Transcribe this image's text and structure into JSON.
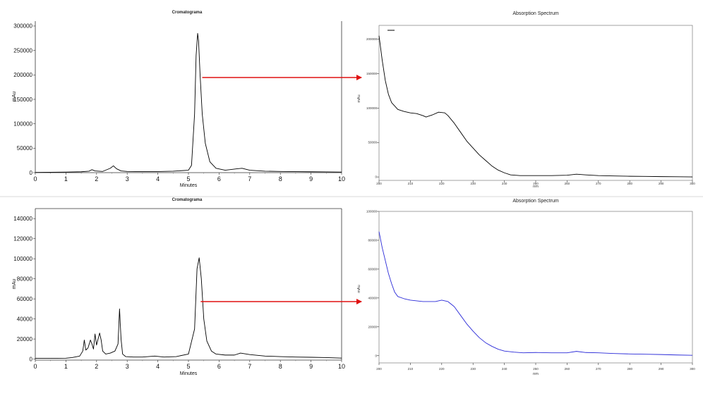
{
  "chart_data": [
    {
      "type": "line",
      "title": "Cromatograma",
      "xlabel": "Minutes",
      "ylabel": "mAu",
      "xlim": [
        0,
        10
      ],
      "ylim": [
        0,
        310000
      ],
      "x_ticks": [
        0,
        1,
        2,
        3,
        4,
        5,
        6,
        7,
        8,
        9,
        10
      ],
      "y_ticks": [
        0,
        50000,
        100000,
        150000,
        200000,
        250000,
        300000
      ],
      "y_tick_labels": [
        "0",
        "50000",
        "100000",
        "150000",
        "200000",
        "250000",
        "300000"
      ],
      "series": [
        {
          "color": "#000000",
          "x": [
            0,
            0.5,
            1,
            1.5,
            1.75,
            1.85,
            1.95,
            2.2,
            2.45,
            2.55,
            2.65,
            2.8,
            3,
            3.5,
            4,
            4.5,
            5,
            5.1,
            5.2,
            5.25,
            5.3,
            5.33,
            5.38,
            5.45,
            5.55,
            5.7,
            5.9,
            6.2,
            6.6,
            6.75,
            7,
            7.5,
            8,
            8.5,
            9,
            9.5,
            10
          ],
          "y": [
            500,
            800,
            1200,
            1800,
            3000,
            6000,
            3500,
            2500,
            9000,
            14000,
            8000,
            3500,
            2500,
            2000,
            2200,
            3000,
            5000,
            15000,
            120000,
            240000,
            285000,
            270000,
            200000,
            120000,
            60000,
            22000,
            9000,
            5000,
            8000,
            9000,
            5000,
            3000,
            2500,
            2000,
            1800,
            1500,
            1200
          ]
        }
      ],
      "annotations": [
        "arrow from peak at ~5.5 min to absorption spectrum"
      ]
    },
    {
      "type": "line",
      "title": "Absorption Spectrum",
      "xlabel": "nm",
      "ylabel": "mAu",
      "xlim": [
        200,
        300
      ],
      "ylim": [
        -5000,
        220000
      ],
      "x_ticks": [
        200,
        210,
        220,
        230,
        240,
        250,
        260,
        270,
        280,
        290,
        300
      ],
      "y_ticks": [
        0,
        50000,
        100000,
        150000,
        200000
      ],
      "series": [
        {
          "color": "#000000",
          "x": [
            200,
            201,
            202,
            203,
            204,
            206,
            208,
            210,
            212,
            214,
            215,
            217,
            219,
            221,
            222,
            224,
            226,
            228,
            230,
            232,
            234,
            236,
            238,
            240,
            242,
            245,
            250,
            255,
            260,
            263,
            266,
            270,
            275,
            280,
            285,
            290,
            295,
            300
          ],
          "y": [
            205000,
            170000,
            140000,
            120000,
            108000,
            98000,
            95000,
            93000,
            92000,
            89000,
            87000,
            90000,
            94000,
            93000,
            89000,
            78000,
            65000,
            52000,
            42000,
            32000,
            24000,
            16000,
            10000,
            6000,
            3000,
            2000,
            2000,
            2000,
            2500,
            4000,
            3000,
            2000,
            1500,
            1000,
            800,
            500,
            300,
            0
          ]
        }
      ]
    },
    {
      "type": "line",
      "title": "Cromatograma",
      "xlabel": "Minutes",
      "ylabel": "mAu",
      "xlim": [
        0,
        10
      ],
      "ylim": [
        -1000,
        150000
      ],
      "x_ticks": [
        0,
        1,
        2,
        3,
        4,
        5,
        6,
        7,
        8,
        9,
        10
      ],
      "y_ticks": [
        0,
        20000,
        40000,
        60000,
        80000,
        100000,
        120000,
        140000
      ],
      "y_tick_labels": [
        "0",
        "20000",
        "40000",
        "60000",
        "80000",
        "100000",
        "120000",
        "140000"
      ],
      "series": [
        {
          "color": "#000000",
          "x": [
            0,
            0.5,
            1,
            1.2,
            1.45,
            1.55,
            1.6,
            1.65,
            1.72,
            1.8,
            1.85,
            1.9,
            1.95,
            2,
            2.05,
            2.1,
            2.15,
            2.2,
            2.3,
            2.45,
            2.6,
            2.7,
            2.75,
            2.8,
            2.85,
            2.95,
            3.2,
            3.5,
            3.9,
            4.2,
            4.6,
            5,
            5.2,
            5.28,
            5.35,
            5.42,
            5.5,
            5.6,
            5.75,
            5.9,
            6.2,
            6.5,
            6.7,
            7,
            7.5,
            8,
            8.5,
            9,
            9.5,
            10
          ],
          "y": [
            800,
            700,
            900,
            1500,
            3000,
            8000,
            19000,
            9000,
            11000,
            19000,
            15000,
            10000,
            25000,
            14000,
            20000,
            26000,
            19000,
            8000,
            5000,
            6000,
            8000,
            15000,
            50000,
            20000,
            5000,
            2500,
            2000,
            2000,
            3000,
            2000,
            2500,
            5000,
            30000,
            90000,
            101000,
            80000,
            40000,
            18000,
            8000,
            5000,
            4000,
            4000,
            6000,
            4500,
            3000,
            2500,
            2000,
            1800,
            1500,
            1000
          ]
        }
      ],
      "annotations": [
        "arrow from peak at ~5.5 min to absorption spectrum"
      ]
    },
    {
      "type": "line",
      "title": "Absorption Spectrum",
      "xlabel": "nm",
      "ylabel": "mAu",
      "xlim": [
        200,
        300
      ],
      "ylim": [
        -5000,
        100000
      ],
      "x_ticks": [
        200,
        210,
        220,
        230,
        240,
        250,
        260,
        270,
        280,
        290,
        300
      ],
      "y_ticks": [
        0,
        20000,
        40000,
        60000,
        80000,
        100000
      ],
      "series": [
        {
          "color": "#2a2ad8",
          "x": [
            200,
            201,
            202,
            203,
            204,
            205,
            206,
            208,
            210,
            212,
            214,
            216,
            218,
            220,
            222,
            224,
            226,
            228,
            230,
            232,
            234,
            236,
            238,
            240,
            243,
            246,
            250,
            255,
            260,
            263,
            266,
            270,
            275,
            280,
            285,
            290,
            295,
            300
          ],
          "y": [
            86000,
            75000,
            66000,
            57000,
            50000,
            44000,
            41000,
            39500,
            38500,
            38000,
            37500,
            37500,
            37500,
            38500,
            37500,
            34000,
            28000,
            22000,
            17000,
            12500,
            9000,
            6500,
            4500,
            3200,
            2500,
            2000,
            2200,
            2000,
            2000,
            3000,
            2200,
            2000,
            1500,
            1200,
            1000,
            800,
            500,
            300
          ]
        }
      ]
    }
  ]
}
